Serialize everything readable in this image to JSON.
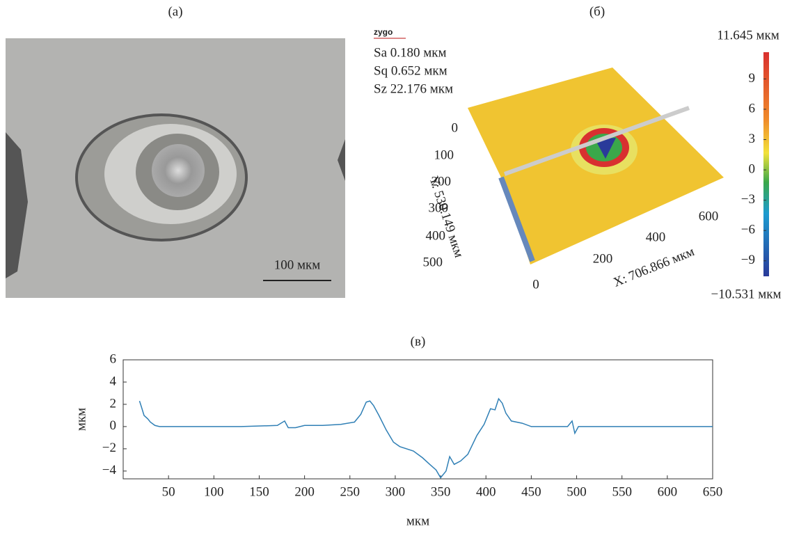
{
  "panel_a": {
    "label": "(a)",
    "scale_bar": "100 мкм"
  },
  "panel_b": {
    "label": "(б)",
    "logo": "zygo",
    "stats": [
      "Sa 0.180 мкм",
      "Sq 0.652 мкм",
      "Sz 22.176 мкм"
    ],
    "y_axis_label": "Y: 530.149 мкм",
    "x_axis_label": "X: 706.866 мкм",
    "y_axis_ticks": [
      0,
      100,
      200,
      300,
      400,
      500
    ],
    "x_axis_ticks": [
      0,
      200,
      400,
      600
    ],
    "colorbar": {
      "max_label": "11.645 мкм",
      "min_label": "−10.531 мкм",
      "ylim": [
        -10.531,
        11.645
      ],
      "yticks": [
        9,
        6,
        3,
        {
          "value": 0,
          "label": "0"
        },
        {
          "value": -3,
          "label": "−3"
        },
        {
          "value": -6,
          "label": "−6"
        },
        {
          "value": -9,
          "label": "−9"
        }
      ]
    }
  },
  "chart_data": {
    "type": "line",
    "title": "(в)",
    "x_label": "мкм",
    "y_label": "мкм",
    "xlim": [
      0,
      650
    ],
    "ylim": [
      -4.7,
      6
    ],
    "xticks": [
      50,
      100,
      150,
      200,
      250,
      300,
      350,
      400,
      450,
      500,
      550,
      600,
      650
    ],
    "yticks": [
      6,
      4,
      2,
      0,
      {
        "value": -2,
        "label": "−2"
      },
      {
        "value": -4,
        "label": "−4"
      }
    ],
    "series": [
      {
        "color": "#2f7fb5",
        "x": [
          18,
          20,
          23,
          27,
          30,
          35,
          40,
          100,
          130,
          170,
          178,
          182,
          190,
          200,
          220,
          240,
          255,
          262,
          268,
          272,
          276,
          282,
          290,
          298,
          305,
          320,
          330,
          338,
          345,
          350,
          356,
          360,
          365,
          372,
          380,
          390,
          398,
          405,
          410,
          414,
          418,
          422,
          428,
          440,
          450,
          460,
          490,
          495,
          498,
          502,
          550,
          650
        ],
        "values": [
          2.3,
          1.8,
          1.0,
          0.7,
          0.4,
          0.1,
          0,
          0,
          0,
          0.1,
          0.5,
          -0.1,
          -0.1,
          0.1,
          0.1,
          0.2,
          0.4,
          1.1,
          2.2,
          2.3,
          1.9,
          1.0,
          -0.3,
          -1.4,
          -1.8,
          -2.2,
          -2.8,
          -3.4,
          -3.9,
          -4.6,
          -4.0,
          -2.7,
          -3.4,
          -3.1,
          -2.5,
          -0.8,
          0.2,
          1.6,
          1.5,
          2.5,
          2.1,
          1.2,
          0.5,
          0.3,
          0,
          0,
          0,
          0.5,
          -0.6,
          0,
          0,
          0
        ]
      }
    ]
  }
}
